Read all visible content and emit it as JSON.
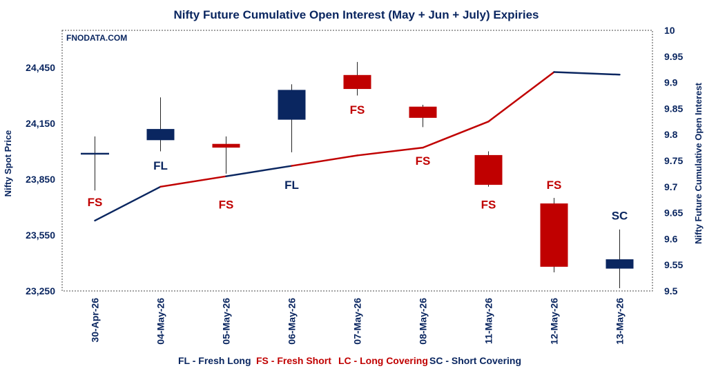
{
  "chart_data": {
    "type": "candlestick+line",
    "title": "Nifty Future Cumulative Open Interest (May + Jun + July) Expiries",
    "watermark": "FNODATA.COM",
    "ylabel_left": "Nifty Spot Price",
    "ylabel_right": "Nifty Future Cumulative Open Interest",
    "ylim_left": [
      23250,
      24650
    ],
    "ylim_right": [
      9.5,
      10
    ],
    "yticks_left": [
      "23,250",
      "23,550",
      "23,850",
      "24,150",
      "24,450"
    ],
    "yticks_right": [
      "9.5",
      "9.55",
      "9.6",
      "9.65",
      "9.7",
      "9.75",
      "9.8",
      "9.85",
      "9.9",
      "9.95",
      "10"
    ],
    "yticks_left_values": [
      23250,
      23550,
      23850,
      24150,
      24450
    ],
    "yticks_right_values": [
      9.5,
      9.55,
      9.6,
      9.65,
      9.7,
      9.75,
      9.8,
      9.85,
      9.9,
      9.95,
      10
    ],
    "categories": [
      "30-Apr-26",
      "04-May-26",
      "05-May-26",
      "06-May-26",
      "07-May-26",
      "08-May-26",
      "11-May-26",
      "12-May-26",
      "13-May-26"
    ],
    "candles": [
      {
        "open": 23990,
        "high": 24080,
        "low": 23790,
        "close": 23990,
        "tag": "FS",
        "tag_pos": "below",
        "tag_value": 23727
      },
      {
        "open": 24060,
        "high": 24290,
        "low": 24000,
        "close": 24120,
        "tag": "FL",
        "tag_pos": "below",
        "tag_value": 23925
      },
      {
        "open": 24040,
        "high": 24080,
        "low": 23880,
        "close": 24020,
        "tag": "FS",
        "tag_pos": "below",
        "tag_value": 23715
      },
      {
        "open": 24170,
        "high": 24360,
        "low": 23995,
        "close": 24330,
        "tag": "FL",
        "tag_pos": "below",
        "tag_value": 23820
      },
      {
        "open": 24410,
        "high": 24480,
        "low": 24300,
        "close": 24335,
        "tag": "FS",
        "tag_pos": "below",
        "tag_value": 24225
      },
      {
        "open": 24240,
        "high": 24250,
        "low": 24130,
        "close": 24180,
        "tag": "FS",
        "tag_pos": "below",
        "tag_value": 23950
      },
      {
        "open": 23980,
        "high": 24000,
        "low": 23810,
        "close": 23820,
        "tag": "FS",
        "tag_pos": "below",
        "tag_value": 23715
      },
      {
        "open": 23720,
        "high": 23750,
        "low": 23350,
        "close": 23380,
        "tag": "FS",
        "tag_pos": "above",
        "tag_value": 23820
      },
      {
        "open": 23370,
        "high": 23580,
        "low": 23265,
        "close": 23420,
        "tag": "SC",
        "tag_pos": "above",
        "tag_value": 23655
      }
    ],
    "oi_line": [
      9.635,
      9.7,
      9.72,
      9.74,
      9.76,
      9.775,
      9.825,
      9.92,
      9.915
    ],
    "colors": {
      "bull": "#0a2660",
      "bear": "#c00000",
      "oi_fresh_long": "#0a2660",
      "oi_fresh_short": "#c00000",
      "axis_text": "#0a2660"
    },
    "grid": false,
    "legend": [
      {
        "label": "FL - Fresh Long",
        "color": "#0a2660"
      },
      {
        "label": "FS - Fresh Short",
        "color": "#c00000"
      },
      {
        "label": "LC - Long Covering",
        "color": "#c00000"
      },
      {
        "label": "SC - Short Covering",
        "color": "#0a2660"
      }
    ],
    "legend_position": "bottom"
  }
}
